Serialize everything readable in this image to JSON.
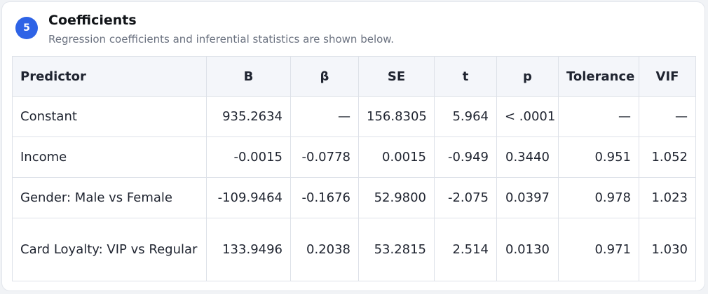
{
  "section": {
    "step_number": "5",
    "title": "Coefficients",
    "subtitle": "Regression coefficients and inferential statistics are shown below."
  },
  "table": {
    "headers": [
      "Predictor",
      "B",
      "β",
      "SE",
      "t",
      "p",
      "Tolerance",
      "VIF"
    ],
    "rows": [
      [
        "Constant",
        "935.2634",
        "—",
        "156.8305",
        "5.964",
        "< .0001",
        "—",
        "—"
      ],
      [
        "Income",
        "-0.0015",
        "-0.0778",
        "0.0015",
        "-0.949",
        "0.3440",
        "0.951",
        "1.052"
      ],
      [
        "Gender: Male vs Female",
        "-109.9464",
        "-0.1676",
        "52.9800",
        "-2.075",
        "0.0397",
        "0.978",
        "1.023"
      ],
      [
        "Card Loyalty: VIP vs Regular",
        "133.9496",
        "0.2038",
        "53.2815",
        "2.514",
        "0.0130",
        "0.971",
        "1.030"
      ]
    ]
  },
  "colors": {
    "accent": "#2e63e6",
    "header_bg": "#f4f6fa",
    "border": "#dde1e8"
  }
}
